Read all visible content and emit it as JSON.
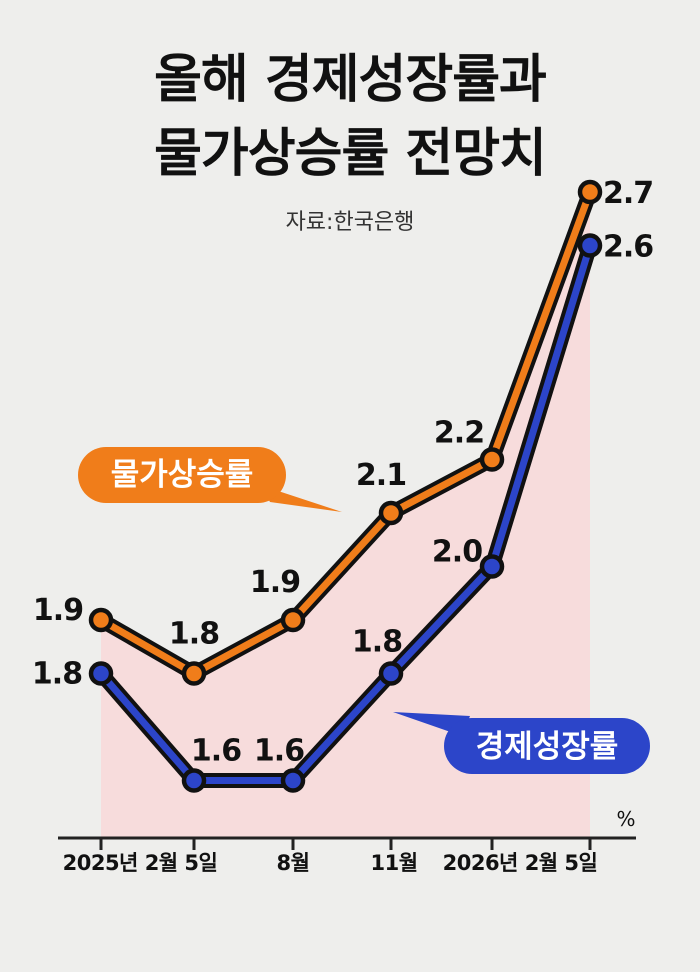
{
  "title_lines": [
    "올해 경제성장률과",
    "물가상승률 전망치"
  ],
  "source": "자료:한국은행",
  "chart_data": {
    "type": "line",
    "categories": [
      "2025년 2월 5일",
      "",
      "8월",
      "11월",
      "2026년 2월 5일",
      ""
    ],
    "unit": "%",
    "ylim": [
      1.2,
      2.9
    ],
    "series": [
      {
        "name": "물가상승률",
        "values": [
          1.9,
          1.8,
          1.9,
          2.1,
          2.2,
          2.7
        ],
        "labels": [
          "1.9",
          "1.8",
          "1.9",
          "2.1",
          "2.2",
          "2.7"
        ],
        "color": "#f07d1a"
      },
      {
        "name": "경제성장률",
        "values": [
          1.8,
          1.6,
          1.6,
          1.8,
          2.0,
          2.6
        ],
        "labels": [
          "1.8",
          "1.6",
          "1.6",
          "1.8",
          "2.0",
          "2.6"
        ],
        "color": "#2c45c9"
      }
    ],
    "area_fill": "#f7dcdc"
  }
}
